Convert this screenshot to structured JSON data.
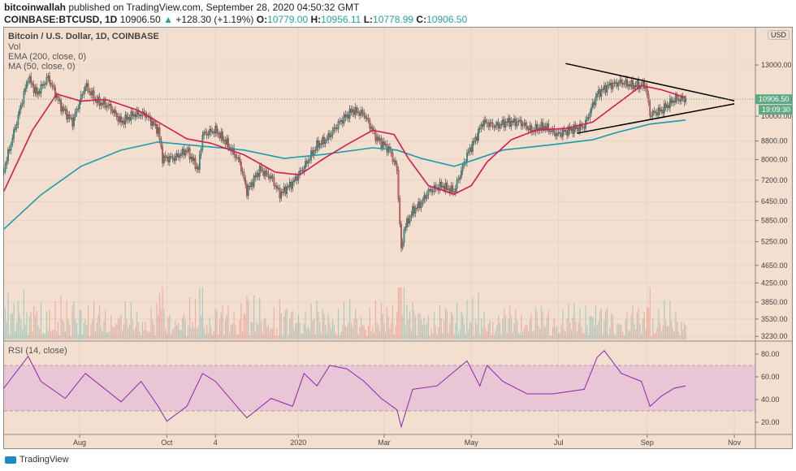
{
  "header": {
    "publisher": "bitcoinwallah",
    "published_text": "published on TradingView.com, September 28, 2020 04:50:32 GMT",
    "symbol": "COINBASE:BTCUSD, 1D",
    "last": "10906.50",
    "change": "+128.30 (+1.19%)",
    "o_label": "O:",
    "o": "10779.00",
    "h_label": "H:",
    "h": "10956.11",
    "l_label": "L:",
    "l": "10778.99",
    "c_label": "C:",
    "c": "10906.50"
  },
  "legend": {
    "title": "Bitcoin / U.S. Dollar, 1D, COINBASE",
    "vol": "Vol",
    "ema": "EMA (200, close, 0)",
    "ma": "MA (50, close, 0)",
    "rsi": "RSI (14, close)"
  },
  "price_axis": {
    "currency": "USD",
    "last_price": "10906.50",
    "countdown": "19:09:30"
  },
  "footer": {
    "brand": "TradingView"
  },
  "colors": {
    "background": "#f2dfd0",
    "up": "#26a69a",
    "down": "#ef5350",
    "ema": "#1e9bad",
    "ma": "#d81b50",
    "rsi": "#8e24aa",
    "rsi_band": "#e8c6d6",
    "last_price": "#5fa883"
  },
  "chart_data": [
    {
      "type": "candlestick",
      "scale": "log",
      "grid": true,
      "y_ticks": [
        "13000.00",
        "10000.00",
        "8800.00",
        "8000.00",
        "7200.00",
        "6450.00",
        "5850.00",
        "5250.00",
        "4650.00",
        "4250.00",
        "3850.00",
        "3530.00",
        "3230.00"
      ],
      "x_ticks": [
        {
          "label": "Aug",
          "date": "2019-08-01"
        },
        {
          "label": "Oct",
          "date": "2019-10-01"
        },
        {
          "label": "4",
          "date": "2019-11-04"
        },
        {
          "label": "2020",
          "date": "2020-01-01"
        },
        {
          "label": "Mar",
          "date": "2020-03-01"
        },
        {
          "label": "May",
          "date": "2020-05-01"
        },
        {
          "label": "Jul",
          "date": "2020-07-01"
        },
        {
          "label": "Sep",
          "date": "2020-09-01"
        },
        {
          "label": "Nov",
          "date": "2020-11-01"
        }
      ],
      "close": [
        [
          "2019-06-09",
          7600
        ],
        [
          "2019-06-18",
          9700
        ],
        [
          "2019-06-26",
          12200
        ],
        [
          "2019-07-02",
          11200
        ],
        [
          "2019-07-10",
          12200
        ],
        [
          "2019-07-19",
          10500
        ],
        [
          "2019-07-27",
          9700
        ],
        [
          "2019-08-05",
          11700
        ],
        [
          "2019-08-13",
          10800
        ],
        [
          "2019-08-22",
          10500
        ],
        [
          "2019-08-30",
          9700
        ],
        [
          "2019-09-08",
          10100
        ],
        [
          "2019-09-16",
          10100
        ],
        [
          "2019-09-25",
          9300
        ],
        [
          "2019-09-28",
          8060
        ],
        [
          "2019-10-06",
          8060
        ],
        [
          "2019-10-15",
          8400
        ],
        [
          "2019-10-23",
          7600
        ],
        [
          "2019-10-26",
          9100
        ],
        [
          "2019-11-04",
          9300
        ],
        [
          "2019-11-12",
          8700
        ],
        [
          "2019-11-21",
          7900
        ],
        [
          "2019-11-26",
          6800
        ],
        [
          "2019-12-05",
          7600
        ],
        [
          "2019-12-13",
          7300
        ],
        [
          "2019-12-19",
          6700
        ],
        [
          "2019-12-28",
          7100
        ],
        [
          "2020-01-05",
          7700
        ],
        [
          "2020-01-14",
          8600
        ],
        [
          "2020-01-21",
          8900
        ],
        [
          "2020-01-30",
          9700
        ],
        [
          "2020-02-08",
          10300
        ],
        [
          "2020-02-16",
          10100
        ],
        [
          "2020-02-25",
          8900
        ],
        [
          "2020-03-05",
          8400
        ],
        [
          "2020-03-10",
          7600
        ],
        [
          "2020-03-13",
          5000
        ],
        [
          "2020-03-15",
          5600
        ],
        [
          "2020-03-21",
          6150
        ],
        [
          "2020-03-27",
          6400
        ],
        [
          "2020-04-01",
          6800
        ],
        [
          "2020-04-10",
          7000
        ],
        [
          "2020-04-19",
          6800
        ],
        [
          "2020-04-28",
          8200
        ],
        [
          "2020-05-04",
          8900
        ],
        [
          "2020-05-09",
          9700
        ],
        [
          "2020-05-18",
          9500
        ],
        [
          "2020-05-26",
          9700
        ],
        [
          "2020-06-04",
          9700
        ],
        [
          "2020-06-12",
          9300
        ],
        [
          "2020-06-21",
          9500
        ],
        [
          "2020-06-30",
          9100
        ],
        [
          "2020-07-08",
          9300
        ],
        [
          "2020-07-19",
          9500
        ],
        [
          "2020-07-28",
          11200
        ],
        [
          "2020-08-05",
          11700
        ],
        [
          "2020-08-14",
          11900
        ],
        [
          "2020-08-22",
          11700
        ],
        [
          "2020-08-31",
          11700
        ],
        [
          "2020-09-03",
          10100
        ],
        [
          "2020-09-11",
          10300
        ],
        [
          "2020-09-20",
          10900
        ],
        [
          "2020-09-28",
          10906.5
        ]
      ],
      "ema200": [
        [
          "2019-06-09",
          5600
        ],
        [
          "2019-07-05",
          6680
        ],
        [
          "2019-08-02",
          7730
        ],
        [
          "2019-08-30",
          8400
        ],
        [
          "2019-09-25",
          8760
        ],
        [
          "2019-10-26",
          8570
        ],
        [
          "2019-11-24",
          8400
        ],
        [
          "2019-12-22",
          8050
        ],
        [
          "2020-01-19",
          8220
        ],
        [
          "2020-02-22",
          8500
        ],
        [
          "2020-03-10",
          8400
        ],
        [
          "2020-03-27",
          8050
        ],
        [
          "2020-04-19",
          7730
        ],
        [
          "2020-05-01",
          7950
        ],
        [
          "2020-05-23",
          8400
        ],
        [
          "2020-06-27",
          8640
        ],
        [
          "2020-07-25",
          8860
        ],
        [
          "2020-08-11",
          9200
        ],
        [
          "2020-09-03",
          9600
        ],
        [
          "2020-09-28",
          9800
        ]
      ],
      "ma50": [
        [
          "2019-06-09",
          6800
        ],
        [
          "2019-06-29",
          9300
        ],
        [
          "2019-07-16",
          11200
        ],
        [
          "2019-08-02",
          10800
        ],
        [
          "2019-08-19",
          10900
        ],
        [
          "2019-09-11",
          10300
        ],
        [
          "2019-09-25",
          9700
        ],
        [
          "2019-10-15",
          8900
        ],
        [
          "2019-11-01",
          8700
        ],
        [
          "2019-11-24",
          8200
        ],
        [
          "2019-12-16",
          7500
        ],
        [
          "2020-01-02",
          7400
        ],
        [
          "2020-01-19",
          8050
        ],
        [
          "2020-02-04",
          8640
        ],
        [
          "2020-02-22",
          9300
        ],
        [
          "2020-03-08",
          9100
        ],
        [
          "2020-03-18",
          8050
        ],
        [
          "2020-04-01",
          7000
        ],
        [
          "2020-04-19",
          6700
        ],
        [
          "2020-05-01",
          7000
        ],
        [
          "2020-05-12",
          7900
        ],
        [
          "2020-05-29",
          8860
        ],
        [
          "2020-06-15",
          9300
        ],
        [
          "2020-07-08",
          9400
        ],
        [
          "2020-07-25",
          9700
        ],
        [
          "2020-08-11",
          10650
        ],
        [
          "2020-08-28",
          11700
        ],
        [
          "2020-09-11",
          11450
        ],
        [
          "2020-09-28",
          11000
        ]
      ],
      "trendlines": [
        {
          "from": [
            "2020-07-06",
            13100
          ],
          "to": [
            "2020-11-01",
            10820
          ]
        },
        {
          "from": [
            "2020-07-14",
            9160
          ],
          "to": [
            "2020-11-01",
            10650
          ]
        }
      ]
    },
    {
      "type": "line",
      "name": "RSI (14, close)",
      "ylim": [
        10,
        90
      ],
      "y_ticks": [
        "80.00",
        "60.00",
        "40.00",
        "20.00"
      ],
      "band": [
        30,
        70
      ],
      "values": [
        [
          "2019-06-09",
          50
        ],
        [
          "2019-06-26",
          78
        ],
        [
          "2019-07-05",
          56
        ],
        [
          "2019-07-22",
          41
        ],
        [
          "2019-08-05",
          63
        ],
        [
          "2019-08-19",
          49
        ],
        [
          "2019-08-30",
          38
        ],
        [
          "2019-09-13",
          56
        ],
        [
          "2019-09-25",
          34
        ],
        [
          "2019-10-01",
          21
        ],
        [
          "2019-10-15",
          34
        ],
        [
          "2019-10-26",
          63
        ],
        [
          "2019-11-04",
          56
        ],
        [
          "2019-11-21",
          31
        ],
        [
          "2019-11-26",
          24
        ],
        [
          "2019-12-13",
          41
        ],
        [
          "2019-12-28",
          34
        ],
        [
          "2020-01-05",
          63
        ],
        [
          "2020-01-14",
          52
        ],
        [
          "2020-01-23",
          70
        ],
        [
          "2020-02-04",
          67
        ],
        [
          "2020-02-16",
          56
        ],
        [
          "2020-02-28",
          41
        ],
        [
          "2020-03-10",
          31
        ],
        [
          "2020-03-13",
          16
        ],
        [
          "2020-03-21",
          49
        ],
        [
          "2020-04-07",
          52
        ],
        [
          "2020-04-28",
          74
        ],
        [
          "2020-05-07",
          52
        ],
        [
          "2020-05-12",
          70
        ],
        [
          "2020-05-23",
          56
        ],
        [
          "2020-06-09",
          45
        ],
        [
          "2020-06-27",
          45
        ],
        [
          "2020-07-19",
          49
        ],
        [
          "2020-07-28",
          77
        ],
        [
          "2020-08-02",
          83
        ],
        [
          "2020-08-14",
          63
        ],
        [
          "2020-08-28",
          56
        ],
        [
          "2020-09-03",
          34
        ],
        [
          "2020-09-11",
          43
        ],
        [
          "2020-09-20",
          50
        ],
        [
          "2020-09-28",
          52
        ]
      ]
    }
  ]
}
